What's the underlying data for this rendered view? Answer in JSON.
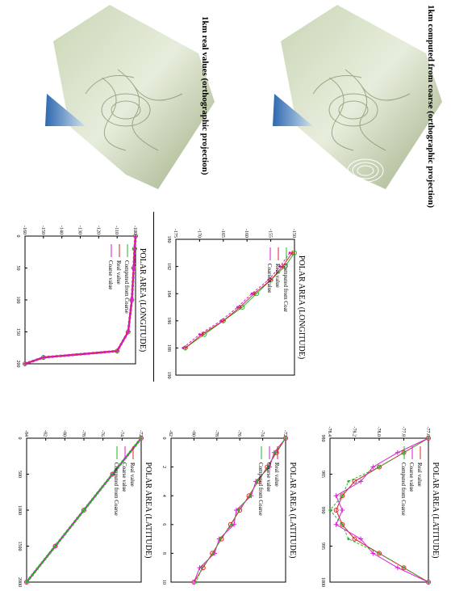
{
  "figure": {
    "captions": {
      "top_left": "1km real values (orthographic projection)",
      "top_right": "1km computed from coarse (orthographic projection)"
    },
    "colors": {
      "real_value": "#d8232a",
      "coarse_value": "#d81bd0",
      "computed": "#27b327",
      "ocean": "#4a8ccf",
      "ice_light": "#e6efd8",
      "ice_dark": "#8b9a6d"
    }
  },
  "chart_data": [
    {
      "id": "lon-full",
      "type": "line",
      "title": "POLAR AREA (LONGITUDE)",
      "xlabel": "",
      "ylabel": "",
      "xticks": [
        "0",
        "50",
        "100",
        "150",
        "200"
      ],
      "yticks": [
        "-100",
        "-110",
        "-120",
        "-130",
        "-140",
        "-150",
        "-160"
      ],
      "legend": [
        "Computed from Coarse",
        "Real value",
        "Coarse value"
      ],
      "series": [
        {
          "name": "Computed from Coarse",
          "x": [
            0,
            20,
            50,
            100,
            150,
            180,
            190,
            200
          ],
          "y": [
            -100,
            -100.5,
            -101,
            -102,
            -104,
            -110,
            -150,
            -160
          ]
        },
        {
          "name": "Real value",
          "x": [
            0,
            20,
            50,
            100,
            150,
            180,
            190,
            200
          ],
          "y": [
            -100,
            -100.5,
            -101,
            -102,
            -104,
            -110,
            -150,
            -160
          ]
        },
        {
          "name": "Coarse value",
          "x": [
            0,
            20,
            50,
            100,
            150,
            180,
            190,
            200
          ],
          "y": [
            -100,
            -100.5,
            -101,
            -102,
            -104,
            -110,
            -150,
            -160
          ]
        }
      ]
    },
    {
      "id": "lon-zoom",
      "type": "line",
      "title": "POLAR AREA (LONGITUDE)",
      "xlabel": "",
      "ylabel": "",
      "xticks": [
        "180",
        "182",
        "184",
        "186",
        "188",
        "190"
      ],
      "yticks": [
        "-150",
        "-155",
        "-160",
        "-165",
        "-170",
        "-175"
      ],
      "legend": [
        "Computed from Coar",
        "Real value",
        "Coarse value"
      ],
      "series": [
        {
          "name": "Computed from Coar",
          "x": [
            181,
            182,
            183,
            184,
            185,
            186,
            187,
            188
          ],
          "y": [
            -150,
            -152,
            -155,
            -158,
            -161,
            -165,
            -169,
            -173
          ]
        },
        {
          "name": "Real value",
          "x": [
            181,
            182,
            183,
            184,
            185,
            186,
            187,
            188
          ],
          "y": [
            -150.5,
            -152.5,
            -155,
            -158.5,
            -161.5,
            -165,
            -169.5,
            -173
          ]
        },
        {
          "name": "Coarse value",
          "x": [
            181,
            182,
            183,
            184,
            185,
            186,
            187,
            188
          ],
          "y": [
            -151,
            -153,
            -155.5,
            -159,
            -162,
            -165.5,
            -170,
            -173.5
          ]
        }
      ]
    },
    {
      "id": "lat-full",
      "type": "line",
      "title": "POLAR AREA (LATITUDE)",
      "xlabel": "",
      "ylabel": "",
      "xticks": [
        "0",
        "500",
        "1000",
        "1500",
        "2000"
      ],
      "yticks": [
        "-72",
        "-74",
        "-76",
        "-78",
        "-80",
        "-82",
        "-84"
      ],
      "legend": [
        "Real value",
        "Coarse value",
        "Computed from Coarse"
      ],
      "series": [
        {
          "name": "Real value",
          "x": [
            0,
            500,
            1000,
            1500,
            2000
          ],
          "y": [
            -72,
            -75,
            -78,
            -81,
            -84
          ]
        },
        {
          "name": "Coarse value",
          "x": [
            0,
            500,
            1000,
            1500,
            2000
          ],
          "y": [
            -72,
            -75,
            -78,
            -81,
            -84
          ]
        },
        {
          "name": "Computed from Coarse",
          "x": [
            0,
            500,
            1000,
            1500,
            2000
          ],
          "y": [
            -72,
            -75,
            -78,
            -81,
            -84
          ]
        }
      ]
    },
    {
      "id": "lat-zoom",
      "type": "line",
      "title": "POLAR AREA (LATITUDE)",
      "xlabel": "",
      "ylabel": "",
      "xticks": [
        "0",
        "2",
        "4",
        "6",
        "8",
        "10"
      ],
      "yticks": [
        "-72",
        "-74",
        "-76",
        "-78",
        "-80",
        "-82"
      ],
      "legend": [
        "Real value",
        "Coarse value",
        "Computed from Coarse"
      ],
      "series": [
        {
          "name": "Real value",
          "x": [
            0,
            1,
            2,
            3,
            4,
            5,
            6,
            7,
            8,
            9,
            10
          ],
          "y": [
            -72,
            -72.8,
            -73.6,
            -74.4,
            -75.2,
            -76,
            -76.8,
            -77.6,
            -78.4,
            -79.2,
            -80
          ]
        },
        {
          "name": "Coarse value",
          "x": [
            0,
            1,
            2,
            3,
            4,
            5,
            6,
            7,
            8,
            9,
            10
          ],
          "y": [
            -72,
            -73,
            -73.4,
            -74.6,
            -75,
            -76.3,
            -76.5,
            -77.8,
            -78.2,
            -79.5,
            -80
          ]
        },
        {
          "name": "Computed from Coarse",
          "x": [
            0,
            1,
            2,
            3,
            4,
            5,
            6,
            7,
            8,
            9,
            10
          ],
          "y": [
            -72,
            -72.9,
            -73.5,
            -74.5,
            -75.1,
            -76.1,
            -76.7,
            -77.7,
            -78.3,
            -79.3,
            -79.8
          ]
        }
      ]
    },
    {
      "id": "lat-detail",
      "type": "line",
      "title": "POLAR AREA (LATITUDE)",
      "xlabel": "",
      "ylabel": "",
      "xticks": [
        "980",
        "985",
        "990",
        "995",
        "1000"
      ],
      "yticks": [
        "-77.6",
        "-77.8",
        "-78.0",
        "-78.2",
        "-78.4"
      ],
      "legend": [
        "Real value",
        "Coarse value",
        "Computed from Coarse"
      ],
      "series": [
        {
          "name": "Real value",
          "x": [
            980,
            982,
            984,
            986,
            988,
            990,
            992,
            994,
            996,
            998,
            1000
          ],
          "y": [
            -77.6,
            -77.8,
            -78.0,
            -78.2,
            -78.3,
            -78.35,
            -78.3,
            -78.2,
            -78.0,
            -77.8,
            -77.6
          ]
        },
        {
          "name": "Coarse value",
          "x": [
            980,
            982,
            984,
            986,
            988,
            990,
            992,
            994,
            996,
            998,
            1000
          ],
          "y": [
            -77.6,
            -77.85,
            -78.05,
            -78.15,
            -78.35,
            -78.3,
            -78.35,
            -78.15,
            -78.05,
            -77.85,
            -77.6
          ]
        },
        {
          "name": "Computed from Coarse",
          "x": [
            980,
            982,
            984,
            986,
            988,
            990,
            992,
            994,
            996,
            998,
            1000
          ],
          "y": [
            -77.6,
            -77.8,
            -78.0,
            -78.25,
            -78.3,
            -78.4,
            -78.3,
            -78.25,
            -78.0,
            -77.8,
            -77.6
          ]
        }
      ]
    }
  ]
}
